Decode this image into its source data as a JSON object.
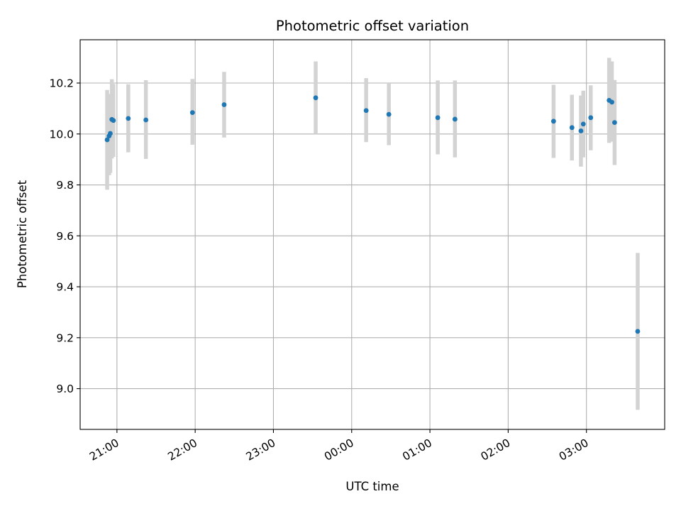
{
  "chart_data": {
    "type": "scatter",
    "title": "Photometric offset variation",
    "xlabel": "UTC time",
    "ylabel": "Photometric offset",
    "x_unit": "hours since 20:00 UTC",
    "xlim": [
      0.53,
      8.0
    ],
    "ylim": [
      8.84,
      10.37
    ],
    "x_ticks": [
      {
        "value": 1,
        "label": "21:00"
      },
      {
        "value": 2,
        "label": "22:00"
      },
      {
        "value": 3,
        "label": "23:00"
      },
      {
        "value": 4,
        "label": "00:00"
      },
      {
        "value": 5,
        "label": "01:00"
      },
      {
        "value": 6,
        "label": "02:00"
      },
      {
        "value": 7,
        "label": "03:00"
      }
    ],
    "y_ticks": [
      {
        "value": 9.0,
        "label": "9.0"
      },
      {
        "value": 9.2,
        "label": "9.2"
      },
      {
        "value": 9.4,
        "label": "9.4"
      },
      {
        "value": 9.6,
        "label": "9.6"
      },
      {
        "value": 9.8,
        "label": "9.8"
      },
      {
        "value": 10.0,
        "label": "10.0"
      },
      {
        "value": 10.2,
        "label": "10.2"
      }
    ],
    "grid": true,
    "marker_color": "#1f77b4",
    "errorbar_color": "#d3d3d3",
    "points": [
      {
        "x": 0.875,
        "y": 9.977,
        "err_low": 9.781,
        "err_high": 10.173
      },
      {
        "x": 0.9,
        "y": 9.992,
        "err_low": 9.838,
        "err_high": 10.146
      },
      {
        "x": 0.915,
        "y": 10.002,
        "err_low": 9.847,
        "err_high": 10.157
      },
      {
        "x": 0.935,
        "y": 10.057,
        "err_low": 9.904,
        "err_high": 10.215
      },
      {
        "x": 0.955,
        "y": 10.053,
        "err_low": 9.91,
        "err_high": 10.196
      },
      {
        "x": 1.145,
        "y": 10.061,
        "err_low": 9.928,
        "err_high": 10.195
      },
      {
        "x": 1.37,
        "y": 10.055,
        "err_low": 9.902,
        "err_high": 10.211
      },
      {
        "x": 1.965,
        "y": 10.084,
        "err_low": 9.958,
        "err_high": 10.216
      },
      {
        "x": 2.37,
        "y": 10.115,
        "err_low": 9.986,
        "err_high": 10.244
      },
      {
        "x": 3.54,
        "y": 10.142,
        "err_low": 10.0,
        "err_high": 10.285
      },
      {
        "x": 4.185,
        "y": 10.092,
        "err_low": 9.968,
        "err_high": 10.219
      },
      {
        "x": 4.475,
        "y": 10.077,
        "err_low": 9.956,
        "err_high": 10.2
      },
      {
        "x": 5.1,
        "y": 10.064,
        "err_low": 9.92,
        "err_high": 10.21
      },
      {
        "x": 5.32,
        "y": 10.058,
        "err_low": 9.908,
        "err_high": 10.21
      },
      {
        "x": 6.58,
        "y": 10.05,
        "err_low": 9.906,
        "err_high": 10.193
      },
      {
        "x": 6.815,
        "y": 10.025,
        "err_low": 9.896,
        "err_high": 10.154
      },
      {
        "x": 6.93,
        "y": 10.012,
        "err_low": 9.872,
        "err_high": 10.151
      },
      {
        "x": 6.96,
        "y": 10.039,
        "err_low": 9.908,
        "err_high": 10.17
      },
      {
        "x": 7.055,
        "y": 10.064,
        "err_low": 9.936,
        "err_high": 10.191
      },
      {
        "x": 7.29,
        "y": 10.132,
        "err_low": 9.965,
        "err_high": 10.299
      },
      {
        "x": 7.325,
        "y": 10.125,
        "err_low": 9.97,
        "err_high": 10.285
      },
      {
        "x": 7.36,
        "y": 10.045,
        "err_low": 9.878,
        "err_high": 10.212
      },
      {
        "x": 7.655,
        "y": 9.225,
        "err_low": 8.917,
        "err_high": 9.533
      }
    ]
  }
}
